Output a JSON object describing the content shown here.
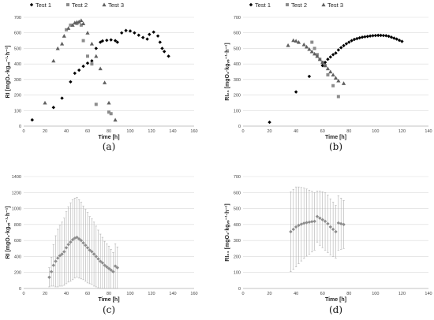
{
  "chart_data": [
    {
      "type": "scatter",
      "caption": "(a)",
      "xlabel": "Time [h]",
      "ylabel": "RI [mgO₂·kgᵥₛ⁻¹·h⁻¹]",
      "xlim": [
        0,
        160
      ],
      "ylim": [
        0,
        700
      ],
      "xticks": [
        0,
        20,
        40,
        60,
        80,
        100,
        120,
        140,
        160
      ],
      "yticks": [
        0,
        100,
        200,
        300,
        400,
        500,
        600,
        700
      ],
      "grid": "horizontal",
      "legend": "top",
      "series": [
        {
          "name": "Test 1",
          "marker": "diamond",
          "color": "#000000",
          "points": [
            [
              8,
              40
            ],
            [
              28,
              120
            ],
            [
              36,
              180
            ],
            [
              44,
              285
            ],
            [
              48,
              340
            ],
            [
              52,
              360
            ],
            [
              56,
              385
            ],
            [
              60,
              405
            ],
            [
              64,
              420
            ],
            [
              68,
              500
            ],
            [
              72,
              540
            ],
            [
              74,
              548
            ],
            [
              78,
              552
            ],
            [
              82,
              555
            ],
            [
              86,
              550
            ],
            [
              88,
              540
            ],
            [
              92,
              600
            ],
            [
              96,
              615
            ],
            [
              100,
              612
            ],
            [
              104,
              600
            ],
            [
              108,
              585
            ],
            [
              112,
              570
            ],
            [
              116,
              560
            ],
            [
              118,
              590
            ],
            [
              122,
              605
            ],
            [
              126,
              580
            ],
            [
              128,
              540
            ],
            [
              130,
              500
            ],
            [
              132,
              480
            ],
            [
              136,
              450
            ]
          ]
        },
        {
          "name": "Test 2",
          "marker": "square",
          "color": "#8c8c8c",
          "points": [
            [
              40,
              620
            ],
            [
              44,
              650
            ],
            [
              50,
              660
            ],
            [
              54,
              650
            ],
            [
              56,
              550
            ],
            [
              60,
              450
            ],
            [
              64,
              400
            ],
            [
              68,
              140
            ],
            [
              80,
              90
            ],
            [
              82,
              80
            ]
          ]
        },
        {
          "name": "Test 3",
          "marker": "triangle",
          "color": "#606060",
          "points": [
            [
              20,
              150
            ],
            [
              28,
              420
            ],
            [
              32,
              500
            ],
            [
              36,
              530
            ],
            [
              38,
              580
            ],
            [
              42,
              630
            ],
            [
              46,
              650
            ],
            [
              48,
              665
            ],
            [
              50,
              670
            ],
            [
              52,
              672
            ],
            [
              54,
              680
            ],
            [
              56,
              660
            ],
            [
              60,
              600
            ],
            [
              64,
              530
            ],
            [
              68,
              450
            ],
            [
              72,
              370
            ],
            [
              76,
              280
            ],
            [
              80,
              150
            ],
            [
              86,
              40
            ]
          ]
        }
      ]
    },
    {
      "type": "scatter",
      "caption": "(b)",
      "xlabel": "Time [h]",
      "ylabel": "RI₂₄ [mgO₂·kgᵥₛ⁻¹·h⁻¹]",
      "xlim": [
        0,
        140
      ],
      "ylim": [
        0,
        700
      ],
      "xticks": [
        0,
        20,
        40,
        60,
        80,
        100,
        120,
        140
      ],
      "yticks": [
        0,
        100,
        200,
        300,
        400,
        500,
        600,
        700
      ],
      "grid": "horizontal",
      "legend": "top",
      "series": [
        {
          "name": "Test 1",
          "marker": "diamond",
          "color": "#000000",
          "points": [
            [
              20,
              25
            ],
            [
              40,
              220
            ],
            [
              50,
              320
            ],
            [
              60,
              390
            ],
            [
              62,
              410
            ],
            [
              64,
              430
            ],
            [
              66,
              445
            ],
            [
              68,
              460
            ],
            [
              70,
              470
            ],
            [
              72,
              490
            ],
            [
              74,
              505
            ],
            [
              76,
              518
            ],
            [
              78,
              530
            ],
            [
              80,
              540
            ],
            [
              82,
              550
            ],
            [
              84,
              558
            ],
            [
              86,
              563
            ],
            [
              88,
              568
            ],
            [
              90,
              572
            ],
            [
              92,
              575
            ],
            [
              94,
              577
            ],
            [
              96,
              580
            ],
            [
              98,
              582
            ],
            [
              100,
              583
            ],
            [
              102,
              584
            ],
            [
              104,
              584
            ],
            [
              106,
              583
            ],
            [
              108,
              582
            ],
            [
              110,
              578
            ],
            [
              112,
              572
            ],
            [
              114,
              566
            ],
            [
              116,
              560
            ],
            [
              118,
              552
            ],
            [
              120,
              545
            ]
          ]
        },
        {
          "name": "Test 2",
          "marker": "square",
          "color": "#8c8c8c",
          "points": [
            [
              52,
              540
            ],
            [
              54,
              500
            ],
            [
              56,
              460
            ],
            [
              58,
              430
            ],
            [
              60,
              410
            ],
            [
              62,
              390
            ],
            [
              64,
              330
            ],
            [
              68,
              260
            ],
            [
              72,
              190
            ]
          ]
        },
        {
          "name": "Test 3",
          "marker": "triangle",
          "color": "#606060",
          "points": [
            [
              34,
              520
            ],
            [
              38,
              552
            ],
            [
              40,
              548
            ],
            [
              42,
              540
            ],
            [
              46,
              525
            ],
            [
              48,
              510
            ],
            [
              50,
              495
            ],
            [
              52,
              480
            ],
            [
              54,
              465
            ],
            [
              56,
              450
            ],
            [
              58,
              430
            ],
            [
              60,
              410
            ],
            [
              62,
              390
            ],
            [
              64,
              370
            ],
            [
              66,
              350
            ],
            [
              68,
              330
            ],
            [
              70,
              310
            ],
            [
              72,
              292
            ],
            [
              76,
              275
            ]
          ]
        }
      ]
    },
    {
      "type": "scatter",
      "caption": "(c)",
      "xlabel": "Time [h]",
      "ylabel": "RI [mgO₂·kgᵥₛ⁻¹·h⁻¹]",
      "xlim": [
        0,
        160
      ],
      "ylim": [
        0,
        1400
      ],
      "xticks": [
        0,
        20,
        40,
        60,
        80,
        100,
        120,
        140,
        160
      ],
      "yticks": [
        0,
        200,
        400,
        600,
        800,
        1000,
        1200,
        1400
      ],
      "grid": "horizontal",
      "legend": "none",
      "series": [
        {
          "name": "",
          "marker": "diamond",
          "color": "#8c8c8c",
          "error_bars": true,
          "points": [
            [
              24,
              140,
              120
            ],
            [
              26,
              210,
              180
            ],
            [
              28,
              290,
              260
            ],
            [
              30,
              340,
              320
            ],
            [
              32,
              380,
              360
            ],
            [
              34,
              410,
              380
            ],
            [
              36,
              430,
              400
            ],
            [
              38,
              460,
              420
            ],
            [
              40,
              510,
              450
            ],
            [
              42,
              550,
              470
            ],
            [
              44,
              580,
              490
            ],
            [
              46,
              610,
              500
            ],
            [
              48,
              630,
              500
            ],
            [
              50,
              640,
              500
            ],
            [
              52,
              620,
              490
            ],
            [
              54,
              600,
              480
            ],
            [
              56,
              570,
              460
            ],
            [
              58,
              540,
              450
            ],
            [
              60,
              510,
              440
            ],
            [
              62,
              480,
              420
            ],
            [
              64,
              460,
              410
            ],
            [
              66,
              430,
              400
            ],
            [
              68,
              400,
              380
            ],
            [
              70,
              370,
              360
            ],
            [
              72,
              340,
              340
            ],
            [
              74,
              320,
              320
            ],
            [
              76,
              290,
              300
            ],
            [
              78,
              270,
              290
            ],
            [
              80,
              250,
              280
            ],
            [
              82,
              230,
              260
            ],
            [
              84,
              210,
              240
            ],
            [
              86,
              280,
              280
            ],
            [
              88,
              260,
              260
            ]
          ]
        }
      ]
    },
    {
      "type": "scatter",
      "caption": "(d)",
      "xlabel": "Time [h]",
      "ylabel": "RI₂₄ [mgO₂·kgᵥₛ⁻¹·h⁻¹]",
      "xlim": [
        0,
        140
      ],
      "ylim": [
        0,
        700
      ],
      "xticks": [
        0,
        20,
        40,
        60,
        80,
        100,
        120,
        140
      ],
      "yticks": [
        0,
        100,
        200,
        300,
        400,
        500,
        600,
        700
      ],
      "grid": "horizontal",
      "legend": "none",
      "series": [
        {
          "name": "",
          "marker": "diamond",
          "color": "#8c8c8c",
          "error_bars": true,
          "points": [
            [
              36,
              355,
              250
            ],
            [
              38,
              370,
              250
            ],
            [
              40,
              385,
              250
            ],
            [
              42,
              395,
              240
            ],
            [
              44,
              402,
              230
            ],
            [
              46,
              408,
              220
            ],
            [
              48,
              412,
              210
            ],
            [
              50,
              415,
              200
            ],
            [
              52,
              418,
              190
            ],
            [
              54,
              420,
              180
            ],
            [
              56,
              450,
              160
            ],
            [
              58,
              440,
              170
            ],
            [
              60,
              430,
              175
            ],
            [
              62,
              420,
              180
            ],
            [
              64,
              405,
              180
            ],
            [
              66,
              385,
              175
            ],
            [
              68,
              370,
              170
            ],
            [
              70,
              355,
              165
            ],
            [
              72,
              410,
              170
            ],
            [
              74,
              405,
              160
            ],
            [
              76,
              400,
              150
            ]
          ]
        }
      ]
    }
  ]
}
